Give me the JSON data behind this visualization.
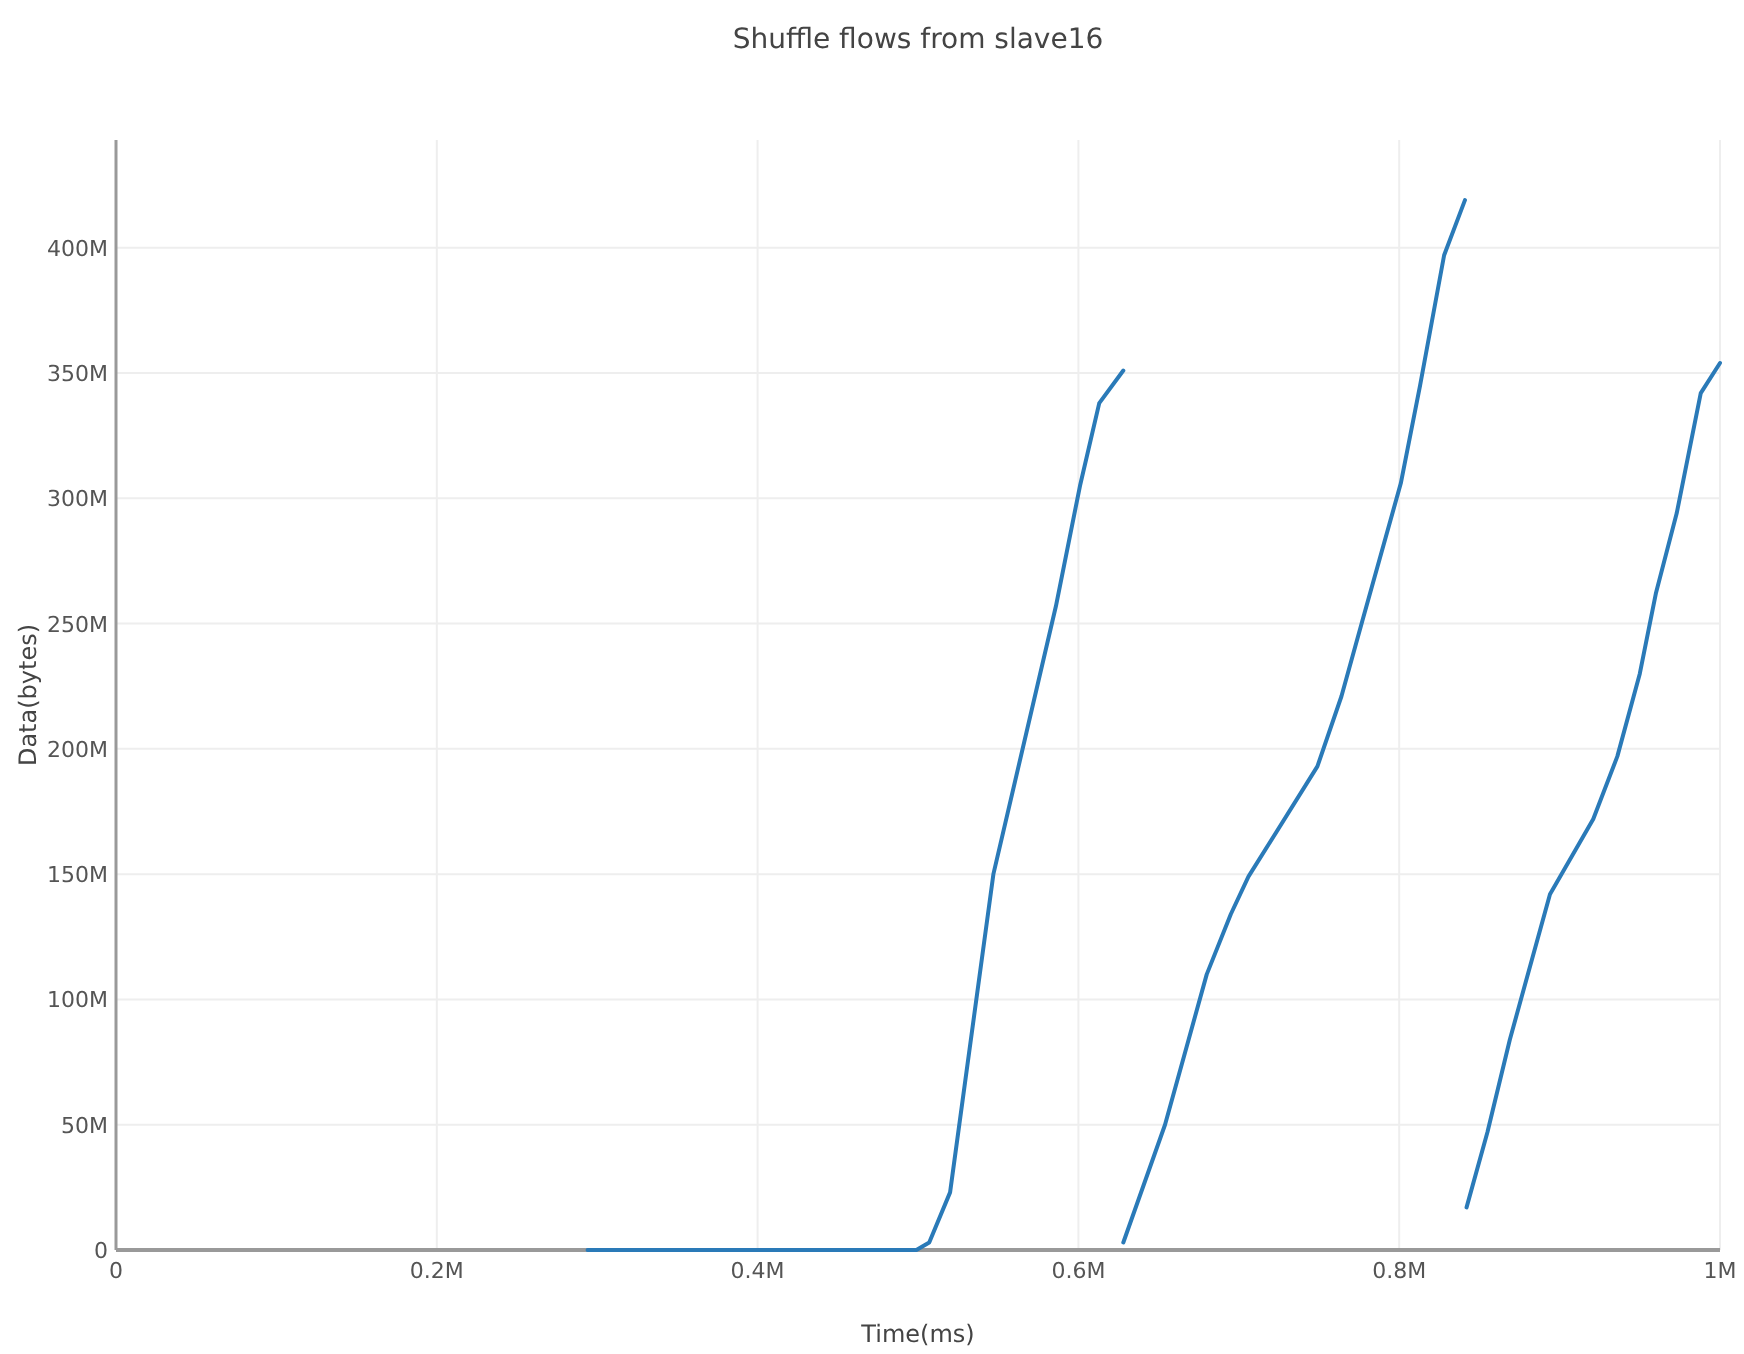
{
  "chart_data": {
    "type": "line",
    "title": "Shuffle flows from  slave16",
    "xlabel": "Time(ms)",
    "ylabel": "Data(bytes)",
    "xlim": [
      0,
      1000000
    ],
    "ylim": [
      0,
      443000000
    ],
    "xticks": [
      0,
      {
        "value": 200000,
        "label": "0.2M"
      },
      {
        "value": 400000,
        "label": "0.4M"
      },
      {
        "value": 600000,
        "label": "0.6M"
      },
      {
        "value": 800000,
        "label": "0.8M"
      },
      {
        "value": 1000000,
        "label": "1M"
      }
    ],
    "yticks": [
      0,
      {
        "value": 50000000,
        "label": "50M"
      },
      {
        "value": 100000000,
        "label": "100M"
      },
      {
        "value": 150000000,
        "label": "150M"
      },
      {
        "value": 200000000,
        "label": "200M"
      },
      {
        "value": 250000000,
        "label": "250M"
      },
      {
        "value": 300000000,
        "label": "300M"
      },
      {
        "value": 350000000,
        "label": "350M"
      },
      {
        "value": 400000000,
        "label": "400M"
      }
    ],
    "grid": true,
    "marker": "none",
    "line_style": "solid",
    "series": [
      {
        "color": "#2a7ab8",
        "x": [
          294000,
          499000,
          507000,
          520000,
          547000,
          586000,
          601000,
          613000,
          628000
        ],
        "values": [
          0,
          0,
          3000000,
          23000000,
          150000000,
          257000000,
          305000000,
          338000000,
          351000000
        ]
      },
      {
        "color": "#2a7ab8",
        "x": [
          628000,
          654000,
          680000,
          695000,
          706000,
          749000,
          764000,
          777000,
          801000,
          813000,
          828000,
          841000
        ],
        "values": [
          3000000,
          50000000,
          110000000,
          134000000,
          149000000,
          193000000,
          221000000,
          251000000,
          306000000,
          345000000,
          397000000,
          419000000
        ]
      },
      {
        "color": "#2a7ab8",
        "x": [
          842000,
          855000,
          869000,
          894000,
          921000,
          936000,
          950000,
          960000,
          973000,
          988000,
          1000000
        ],
        "values": [
          17000000,
          47000000,
          84000000,
          142000000,
          172000000,
          197000000,
          230000000,
          262000000,
          294000000,
          342000000,
          354000000
        ]
      }
    ]
  }
}
